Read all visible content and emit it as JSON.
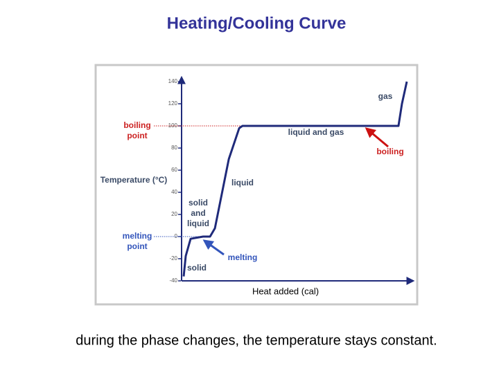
{
  "slide": {
    "title": "Heating/Cooling Curve",
    "caption": "during the phase changes, the temperature stays constant."
  },
  "chart_data": {
    "type": "line",
    "y_label": "Temperature (°C)",
    "x_label": "Heat added (cal)",
    "x": [
      0.9,
      1.8,
      3.9,
      9.3,
      12.3,
      14.4,
      20.4,
      24.9,
      26.3,
      93.7,
      95.2,
      97.3
    ],
    "series": [
      {
        "color": "#1f2a7a",
        "values": [
          -36,
          -17.5,
          -2,
          0,
          0,
          7.5,
          70,
          98,
          100,
          100,
          120,
          140
        ]
      }
    ],
    "xlim": [
      0,
      100
    ],
    "ylim": [
      -40,
      140
    ],
    "yticks": [
      -40,
      -20,
      0,
      20,
      40,
      60,
      80,
      100,
      120,
      140
    ],
    "reference_lines": [
      {
        "value": 100,
        "color": "#cc2222",
        "label": [
          "boiling",
          "point"
        ]
      },
      {
        "value": 0,
        "color": "#3355bb",
        "label": [
          "melting",
          "point"
        ]
      }
    ],
    "annotations": {
      "gas": "gas",
      "liquid_gas": "liquid and gas",
      "boiling": "boiling",
      "liquid": "liquid",
      "solid_liquid": [
        "solid",
        "and",
        "liquid"
      ],
      "melting": "melting",
      "solid": "solid"
    }
  }
}
